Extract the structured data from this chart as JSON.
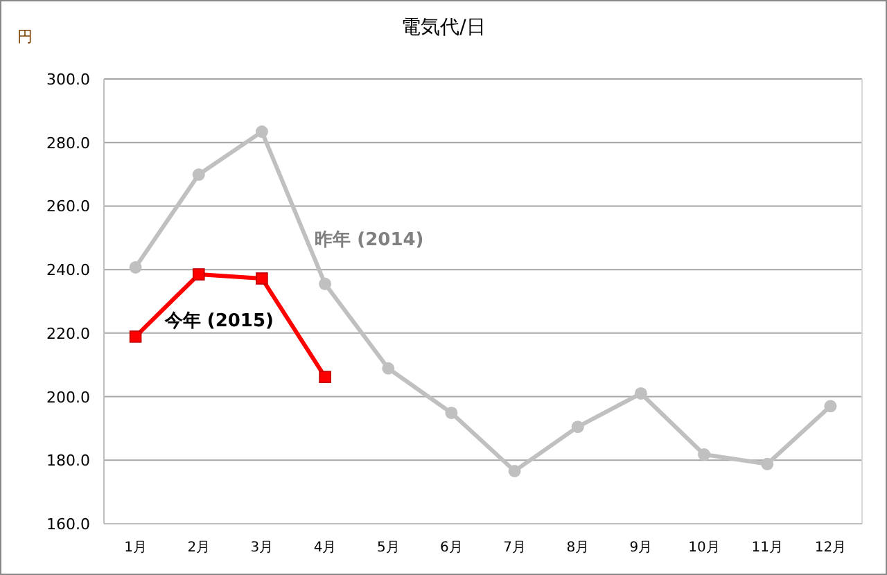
{
  "chart_data": {
    "type": "line",
    "title": "電気代/日",
    "ylabel": "円",
    "categories": [
      "1月",
      "2月",
      "3月",
      "4月",
      "5月",
      "6月",
      "7月",
      "8月",
      "9月",
      "10月",
      "11月",
      "12月"
    ],
    "series": [
      {
        "name": "昨年 (2014)",
        "color": "#c0c0c0",
        "marker": "circle",
        "values": [
          240.7,
          269.9,
          283.4,
          235.5,
          208.9,
          194.9,
          176.6,
          190.5,
          201.0,
          181.8,
          178.8,
          197.0
        ]
      },
      {
        "name": "今年 (2015)",
        "color": "#ff0000",
        "marker": "square",
        "values": [
          218.9,
          238.5,
          237.2,
          206.2,
          null,
          null,
          null,
          null,
          null,
          null,
          null,
          null
        ]
      }
    ],
    "ylim": [
      160,
      300
    ],
    "yticks": [
      {
        "value": 160,
        "label": "160.0"
      },
      {
        "value": 180,
        "label": "180.0"
      },
      {
        "value": 200,
        "label": "200.0"
      },
      {
        "value": 220,
        "label": "220.0"
      },
      {
        "value": 240,
        "label": "240.0"
      },
      {
        "value": 260,
        "label": "260.0"
      },
      {
        "value": 280,
        "label": "280.0"
      },
      {
        "value": 300,
        "label": "300.0"
      }
    ],
    "grid": "y",
    "line_style": "solid"
  }
}
